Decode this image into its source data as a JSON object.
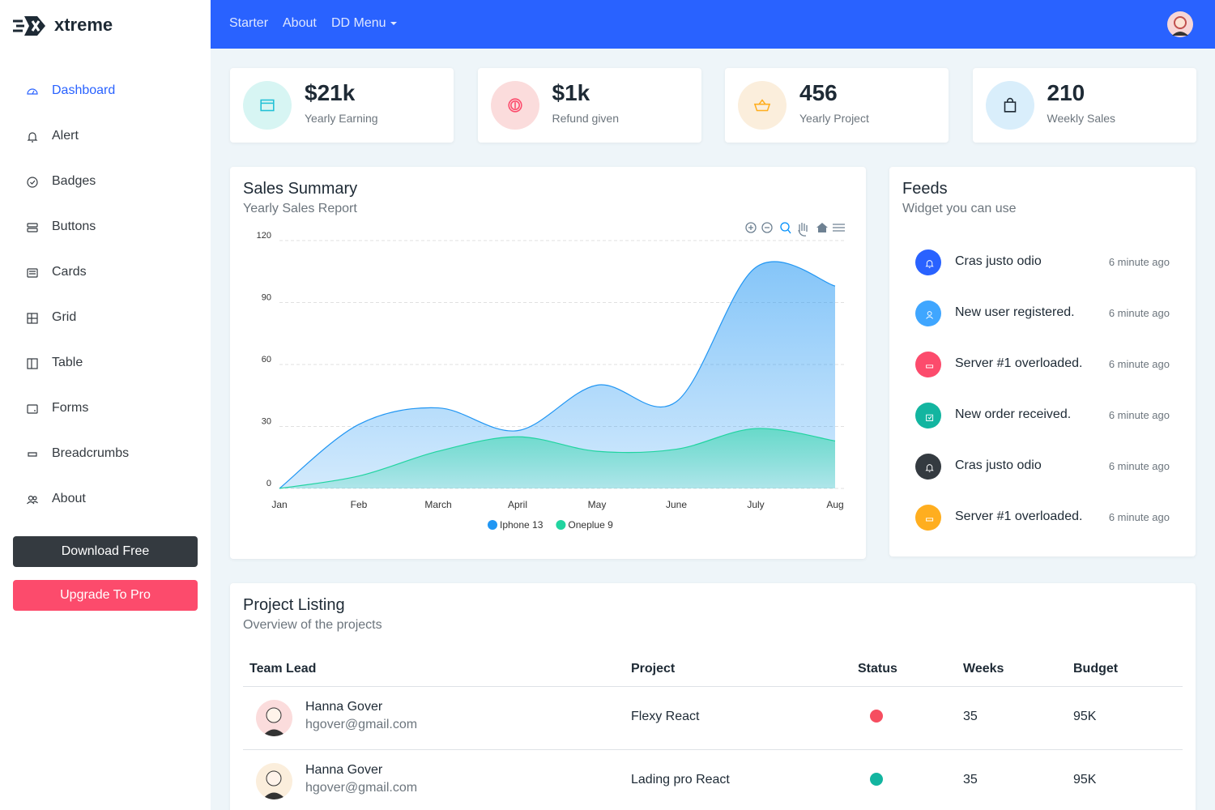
{
  "brand": "xtreme",
  "topnav": [
    "Starter",
    "About",
    "DD Menu"
  ],
  "sidebar": {
    "items": [
      "Dashboard",
      "Alert",
      "Badges",
      "Buttons",
      "Cards",
      "Grid",
      "Table",
      "Forms",
      "Breadcrumbs",
      "About"
    ],
    "buttons": [
      "Download Free",
      "Upgrade To Pro"
    ]
  },
  "stats": [
    {
      "value": "$21k",
      "label": "Yearly Earning"
    },
    {
      "value": "$1k",
      "label": "Refund given"
    },
    {
      "value": "456",
      "label": "Yearly Project"
    },
    {
      "value": "210",
      "label": "Weekly Sales"
    }
  ],
  "sales_summary": {
    "title": "Sales Summary",
    "subtitle": "Yearly Sales Report",
    "chart_data": {
      "type": "area",
      "categories": [
        "Jan",
        "Feb",
        "March",
        "April",
        "May",
        "June",
        "July",
        "Aug"
      ],
      "series": [
        {
          "name": "Iphone 13",
          "color": "#2196f3",
          "values": [
            0,
            31,
            39,
            28,
            50,
            42,
            107,
            98
          ]
        },
        {
          "name": "Oneplue 9",
          "color": "#21d4a0",
          "values": [
            0,
            6,
            18,
            25,
            18,
            19,
            29,
            23
          ]
        }
      ],
      "ylim": [
        0,
        120
      ],
      "yticks": [
        0,
        30,
        60,
        90,
        120
      ],
      "grid": true,
      "legend": "bottom"
    }
  },
  "feeds": {
    "title": "Feeds",
    "subtitle": "Widget you can use",
    "items": [
      {
        "text": "Cras justo odio",
        "time": "6 minute ago"
      },
      {
        "text": "New user registered.",
        "time": "6 minute ago"
      },
      {
        "text": "Server #1 overloaded.",
        "time": "6 minute ago"
      },
      {
        "text": "New order received.",
        "time": "6 minute ago"
      },
      {
        "text": "Cras justo odio",
        "time": "6 minute ago"
      },
      {
        "text": "Server #1 overloaded.",
        "time": "6 minute ago"
      }
    ]
  },
  "projects": {
    "title": "Project Listing",
    "subtitle": "Overview of the projects",
    "columns": [
      "Team Lead",
      "Project",
      "Status",
      "Weeks",
      "Budget"
    ],
    "rows": [
      {
        "name": "Hanna Gover",
        "email": "hgover@gmail.com",
        "project": "Flexy React",
        "status_color": "#f64e60",
        "weeks": "35",
        "budget": "95K"
      },
      {
        "name": "Hanna Gover",
        "email": "hgover@gmail.com",
        "project": "Lading pro React",
        "status_color": "#13b5a0",
        "weeks": "35",
        "budget": "95K"
      }
    ]
  }
}
